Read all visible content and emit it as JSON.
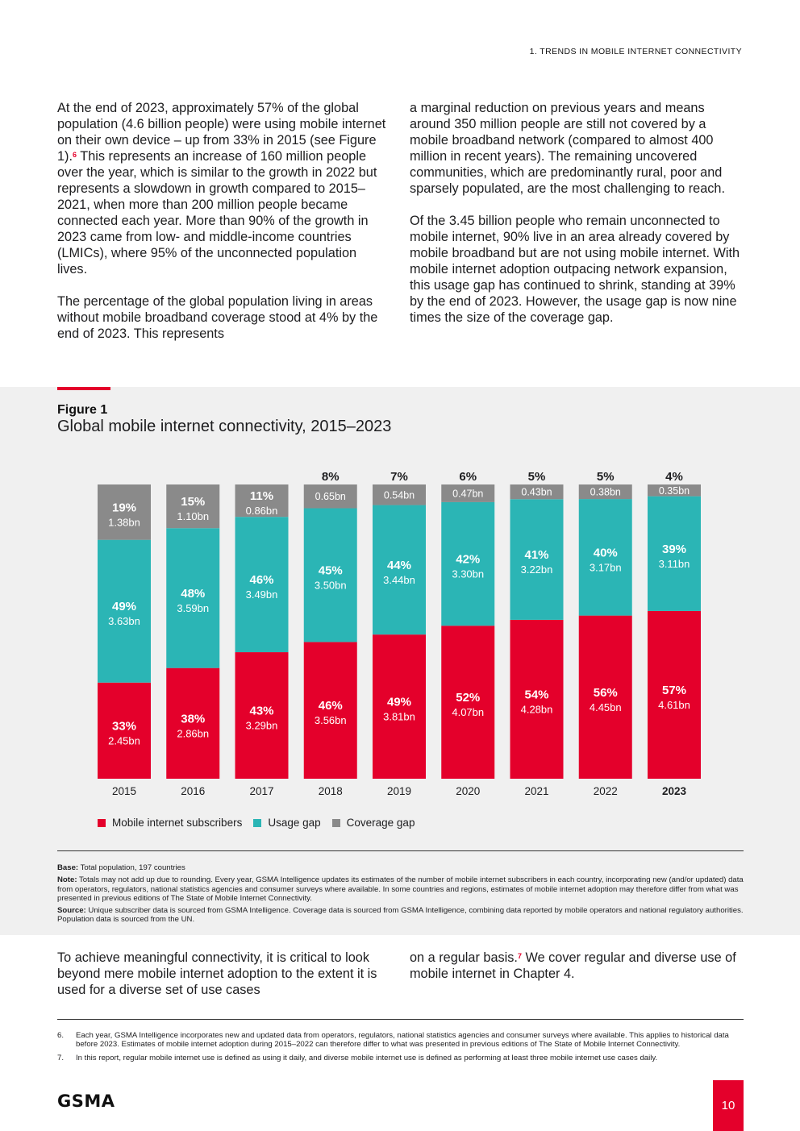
{
  "header": {
    "section_title": "1. TRENDS IN MOBILE INTERNET CONNECTIVITY"
  },
  "intro": {
    "left_p1_before": "At the end of 2023, approximately 57% of the global population (4.6 billion people) were using mobile internet on their own device – up from 33% in 2015 (see Figure 1).",
    "left_p1_fn": "6",
    "left_p1_after": " This represents an increase of 160 million people over the year, which is similar to the growth in 2022 but represents a slowdown in growth compared to 2015–2021, when more than 200 million people became connected each year. More than 90% of the growth in 2023 came from low- and middle-income countries (LMICs), where 95% of the unconnected population lives.",
    "left_p2": "The percentage of the global population living in areas without mobile broadband coverage stood at 4% by the end of 2023. This represents",
    "right_p1": "a marginal reduction on previous years and means around 350 million people are still not covered by a mobile broadband network (compared to almost 400 million in recent years). The remaining uncovered communities, which are predominantly rural, poor and sparsely populated, are the most challenging to reach.",
    "right_p2": "Of the 3.45 billion people who remain unconnected to mobile internet, 90% live in an area already covered by mobile broadband but are not using mobile internet. With mobile internet adoption outpacing network expansion, this usage gap has continued to shrink, standing at 39% by the end of 2023. However, the usage gap is now nine times the size of the coverage gap."
  },
  "figure": {
    "label": "Figure 1",
    "title": "Global mobile internet connectivity, 2015–2023"
  },
  "chart_data": {
    "type": "bar",
    "stacked": true,
    "title": "Global mobile internet connectivity, 2015–2023",
    "categories": [
      "2015",
      "2016",
      "2017",
      "2018",
      "2019",
      "2020",
      "2021",
      "2022",
      "2023"
    ],
    "highlight_category": "2023",
    "series": [
      {
        "name": "Mobile internet subscribers",
        "color": "#e4002b",
        "values": [
          33,
          38,
          43,
          46,
          49,
          52,
          54,
          56,
          57
        ],
        "labels": [
          "33%",
          "38%",
          "43%",
          "46%",
          "49%",
          "52%",
          "54%",
          "56%",
          "57%"
        ],
        "sublabels": [
          "2.45bn",
          "2.86bn",
          "3.29bn",
          "3.56bn",
          "3.81bn",
          "4.07bn",
          "4.28bn",
          "4.45bn",
          "4.61bn"
        ]
      },
      {
        "name": "Usage gap",
        "color": "#2bb5b5",
        "values": [
          49,
          48,
          46,
          45,
          44,
          42,
          41,
          40,
          39
        ],
        "labels": [
          "49%",
          "48%",
          "46%",
          "45%",
          "44%",
          "42%",
          "41%",
          "40%",
          "39%"
        ],
        "sublabels": [
          "3.63bn",
          "3.59bn",
          "3.49bn",
          "3.50bn",
          "3.44bn",
          "3.30bn",
          "3.22bn",
          "3.17bn",
          "3.11bn"
        ]
      },
      {
        "name": "Coverage gap",
        "color": "#8a8a8a",
        "values": [
          19,
          15,
          11,
          8,
          7,
          6,
          5,
          5,
          4
        ],
        "labels": [
          "19%",
          "15%",
          "11%",
          "8%",
          "7%",
          "6%",
          "5%",
          "5%",
          "4%"
        ],
        "sublabels": [
          "1.38bn",
          "1.10bn",
          "0.86bn",
          "0.65bn",
          "0.54bn",
          "0.47bn",
          "0.43bn",
          "0.38bn",
          "0.35bn"
        ]
      }
    ],
    "legend_position": "bottom-left",
    "grid": false
  },
  "legend": {
    "items": [
      {
        "label": "Mobile internet subscribers",
        "color": "#e4002b"
      },
      {
        "label": "Usage gap",
        "color": "#2bb5b5"
      },
      {
        "label": "Coverage gap",
        "color": "#8a8a8a"
      }
    ]
  },
  "notes": {
    "base_label": "Base:",
    "base_text": " Total population, 197 countries",
    "note_label": "Note:",
    "note_text": " Totals may not add up due to rounding. Every year, GSMA Intelligence updates its estimates of the number of mobile internet subscribers in each country, incorporating new (and/or updated) data from operators, regulators, national statistics agencies and consumer surveys where available. In some countries and regions, estimates of mobile internet adoption may therefore differ from what was presented in previous editions of The State of Mobile Internet Connectivity.",
    "source_label": "Source:",
    "source_text": " Unique subscriber data is sourced from GSMA Intelligence. Coverage data is sourced from GSMA Intelligence, combining data reported by mobile operators and national regulatory authorities. Population data is sourced from the UN."
  },
  "outro": {
    "left": "To achieve meaningful connectivity, it is critical to look beyond mere mobile internet adoption to the extent it is used for a diverse set of use cases",
    "right_before": "on a regular basis.",
    "right_fn": "7",
    "right_after": " We cover regular and diverse use of mobile internet in Chapter 4."
  },
  "footnotes": [
    {
      "num": "6.",
      "text": "Each year, GSMA Intelligence incorporates new and updated data from operators, regulators, national statistics agencies and consumer surveys where available. This applies to historical data before 2023. Estimates of mobile internet adoption during 2015–2022 can therefore differ to what was presented in previous editions of The State of Mobile Internet Connectivity."
    },
    {
      "num": "7.",
      "text": "In this report, regular mobile internet use is defined as using it daily, and diverse mobile internet use is defined as performing at least three mobile internet use cases daily."
    }
  ],
  "footer": {
    "logo_text": "GSMA",
    "page_number": "10"
  }
}
